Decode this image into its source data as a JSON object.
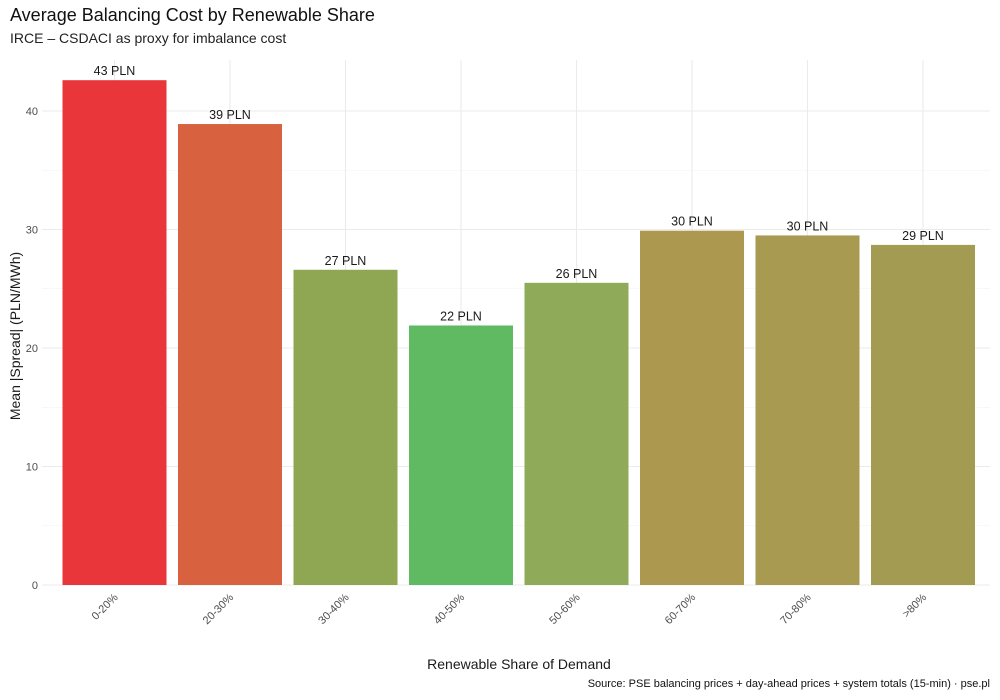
{
  "chart_data": {
    "type": "bar",
    "title": "Average Balancing Cost by Renewable Share",
    "subtitle": "IRCE – CSDACI as proxy for imbalance cost",
    "xlabel": "Renewable Share of Demand",
    "ylabel": "Mean |Spread| (PLN/MWh)",
    "caption": "Source: PSE balancing prices + day-ahead prices + system totals (15-min) · pse.pl",
    "categories": [
      "0-20%",
      "20-30%",
      "30-40%",
      "40-50%",
      "50-60%",
      "60-70%",
      "70-80%",
      ">80%"
    ],
    "values": [
      42.6,
      38.9,
      26.6,
      21.9,
      25.5,
      29.9,
      29.5,
      28.7
    ],
    "data_labels": [
      "43 PLN",
      "39 PLN",
      "27 PLN",
      "22 PLN",
      "26 PLN",
      "30 PLN",
      "30 PLN",
      "29 PLN"
    ],
    "bar_colors": [
      "#e8363b",
      "#d8623f",
      "#8fa652",
      "#5fba62",
      "#8fab59",
      "#ad9850",
      "#a99a51",
      "#a49b52"
    ],
    "ylim": [
      0,
      45
    ],
    "yticks": [
      0,
      10,
      20,
      30,
      40
    ],
    "grid": true,
    "legend": "none"
  }
}
